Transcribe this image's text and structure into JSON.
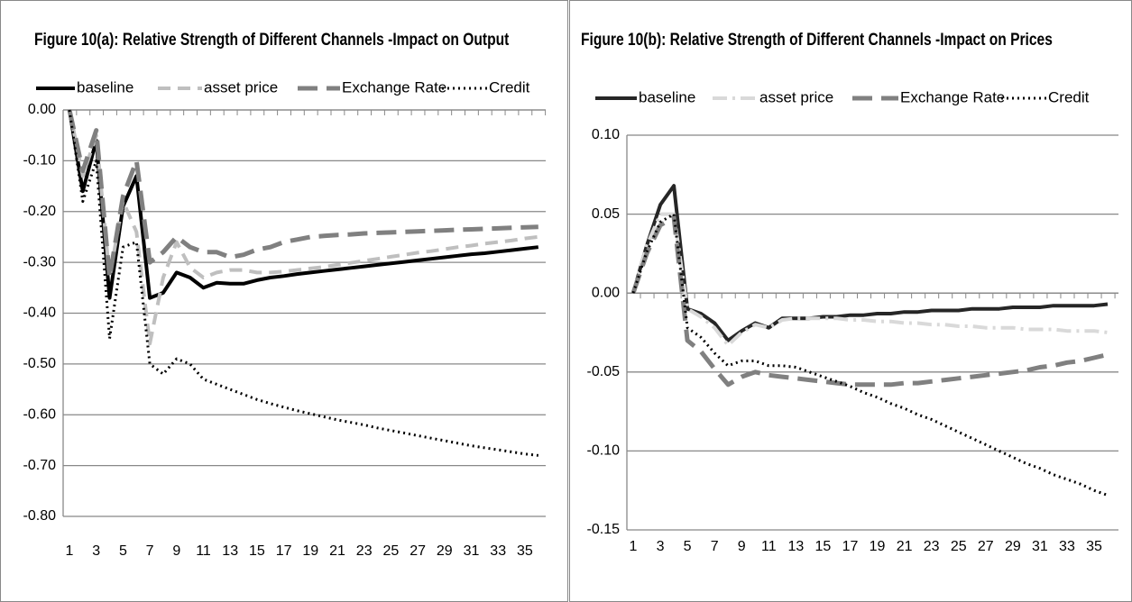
{
  "chart_data": [
    {
      "type": "line",
      "title": "Figure 10(a): Relative Strength of Different Channels -Impact on Output",
      "categories": [
        1,
        null,
        3,
        null,
        5,
        null,
        7,
        null,
        9,
        null,
        11,
        null,
        13,
        null,
        15,
        null,
        17,
        null,
        19,
        null,
        21,
        null,
        23,
        null,
        25,
        null,
        27,
        null,
        29,
        null,
        31,
        null,
        33,
        null,
        35,
        null
      ],
      "ylim": [
        -0.8,
        0
      ],
      "grid": true,
      "yticks": [
        {
          "value": 0,
          "label": "0.00"
        },
        {
          "value": -0.1,
          "label": "-0.10"
        },
        {
          "value": -0.2,
          "label": "-0.20"
        },
        {
          "value": -0.3,
          "label": "-0.30"
        },
        {
          "value": -0.4,
          "label": "-0.40"
        },
        {
          "value": -0.5,
          "label": "-0.50"
        },
        {
          "value": -0.6,
          "label": "-0.60"
        },
        {
          "value": -0.7,
          "label": "-0.70"
        },
        {
          "value": -0.8,
          "label": "-0.80"
        }
      ],
      "series": [
        {
          "name": "baseline",
          "color": "#000000",
          "values": [
            0,
            -0.16,
            -0.06,
            -0.37,
            -0.19,
            -0.13,
            -0.37,
            -0.36,
            -0.32,
            -0.33,
            -0.35,
            -0.34,
            -0.342,
            -0.342,
            -0.335,
            -0.33,
            -0.327,
            -0.323,
            -0.32,
            -0.317,
            -0.314,
            -0.311,
            -0.308,
            -0.305,
            -0.302,
            -0.299,
            -0.296,
            -0.293,
            -0.29,
            -0.287,
            -0.284,
            -0.282,
            -0.279,
            -0.276,
            -0.273,
            -0.27
          ]
        },
        {
          "name": "asset price",
          "color": "#bfbfbf",
          "values": [
            0,
            -0.13,
            -0.05,
            -0.33,
            -0.18,
            -0.24,
            -0.46,
            -0.33,
            -0.26,
            -0.31,
            -0.33,
            -0.32,
            -0.315,
            -0.315,
            -0.32,
            -0.32,
            -0.318,
            -0.315,
            -0.312,
            -0.309,
            -0.305,
            -0.301,
            -0.297,
            -0.293,
            -0.289,
            -0.285,
            -0.281,
            -0.278,
            -0.274,
            -0.27,
            -0.267,
            -0.263,
            -0.26,
            -0.257,
            -0.253,
            -0.25
          ]
        },
        {
          "name": "Exchange Rate",
          "color": "#808080",
          "values": [
            0,
            -0.12,
            -0.04,
            -0.33,
            -0.17,
            -0.1,
            -0.3,
            -0.28,
            -0.25,
            -0.27,
            -0.28,
            -0.28,
            -0.29,
            -0.285,
            -0.275,
            -0.27,
            -0.26,
            -0.255,
            -0.25,
            -0.248,
            -0.246,
            -0.245,
            -0.243,
            -0.242,
            -0.241,
            -0.24,
            -0.239,
            -0.238,
            -0.237,
            -0.236,
            -0.235,
            -0.234,
            -0.233,
            -0.232,
            -0.231,
            -0.23
          ]
        },
        {
          "name": "Credit",
          "color": "#000000",
          "values": [
            0,
            -0.18,
            -0.1,
            -0.45,
            -0.27,
            -0.26,
            -0.5,
            -0.52,
            -0.49,
            -0.5,
            -0.53,
            -0.54,
            -0.55,
            -0.56,
            -0.57,
            -0.578,
            -0.585,
            -0.592,
            -0.598,
            -0.604,
            -0.61,
            -0.615,
            -0.62,
            -0.626,
            -0.631,
            -0.636,
            -0.641,
            -0.646,
            -0.651,
            -0.656,
            -0.661,
            -0.665,
            -0.669,
            -0.673,
            -0.677,
            -0.68
          ]
        }
      ]
    },
    {
      "type": "line",
      "title": "Figure 10(b): Relative Strength of Different Channels -Impact on Prices",
      "categories": [
        1,
        null,
        3,
        null,
        5,
        null,
        7,
        null,
        9,
        null,
        11,
        null,
        13,
        null,
        15,
        null,
        17,
        null,
        19,
        null,
        21,
        null,
        23,
        null,
        25,
        null,
        27,
        null,
        29,
        null,
        31,
        null,
        33,
        null,
        35,
        null
      ],
      "ylim": [
        -0.15,
        0.1
      ],
      "grid": true,
      "yticks": [
        {
          "value": 0.1,
          "label": "0.10"
        },
        {
          "value": 0.05,
          "label": "0.05"
        },
        {
          "value": 0,
          "label": "0.00"
        },
        {
          "value": -0.05,
          "label": "-0.05"
        },
        {
          "value": -0.1,
          "label": "-0.10"
        },
        {
          "value": -0.15,
          "label": "-0.15"
        }
      ],
      "series": [
        {
          "name": "baseline",
          "color": "#262626",
          "values": [
            0,
            0.03,
            0.056,
            0.068,
            -0.01,
            -0.013,
            -0.019,
            -0.03,
            -0.024,
            -0.019,
            -0.022,
            -0.016,
            -0.016,
            -0.016,
            -0.015,
            -0.015,
            -0.014,
            -0.014,
            -0.013,
            -0.013,
            -0.012,
            -0.012,
            -0.011,
            -0.011,
            -0.011,
            -0.01,
            -0.01,
            -0.01,
            -0.009,
            -0.009,
            -0.009,
            -0.008,
            -0.008,
            -0.008,
            -0.008,
            -0.007
          ]
        },
        {
          "name": "asset price",
          "color": "#d9d9d9",
          "values": [
            0,
            0.03,
            0.05,
            0.05,
            -0.01,
            -0.015,
            -0.022,
            -0.033,
            -0.025,
            -0.02,
            -0.022,
            -0.017,
            -0.016,
            -0.016,
            -0.016,
            -0.016,
            -0.017,
            -0.017,
            -0.018,
            -0.018,
            -0.019,
            -0.019,
            -0.02,
            -0.02,
            -0.021,
            -0.021,
            -0.022,
            -0.022,
            -0.022,
            -0.023,
            -0.023,
            -0.023,
            -0.024,
            -0.024,
            -0.024,
            -0.025
          ]
        },
        {
          "name": "Exchange Rate",
          "color": "#808080",
          "values": [
            0,
            0.025,
            0.043,
            0.048,
            -0.03,
            -0.037,
            -0.048,
            -0.058,
            -0.053,
            -0.05,
            -0.052,
            -0.053,
            -0.054,
            -0.055,
            -0.056,
            -0.057,
            -0.058,
            -0.058,
            -0.058,
            -0.058,
            -0.057,
            -0.057,
            -0.056,
            -0.055,
            -0.054,
            -0.053,
            -0.052,
            -0.051,
            -0.05,
            -0.049,
            -0.047,
            -0.046,
            -0.044,
            -0.043,
            -0.041,
            -0.039
          ]
        },
        {
          "name": "Credit",
          "color": "#000000",
          "values": [
            0,
            0.026,
            0.045,
            0.05,
            -0.022,
            -0.028,
            -0.038,
            -0.046,
            -0.043,
            -0.043,
            -0.046,
            -0.046,
            -0.047,
            -0.05,
            -0.053,
            -0.056,
            -0.059,
            -0.063,
            -0.066,
            -0.07,
            -0.073,
            -0.077,
            -0.08,
            -0.084,
            -0.088,
            -0.092,
            -0.096,
            -0.1,
            -0.104,
            -0.108,
            -0.111,
            -0.115,
            -0.118,
            -0.121,
            -0.125,
            -0.128
          ]
        }
      ]
    }
  ]
}
